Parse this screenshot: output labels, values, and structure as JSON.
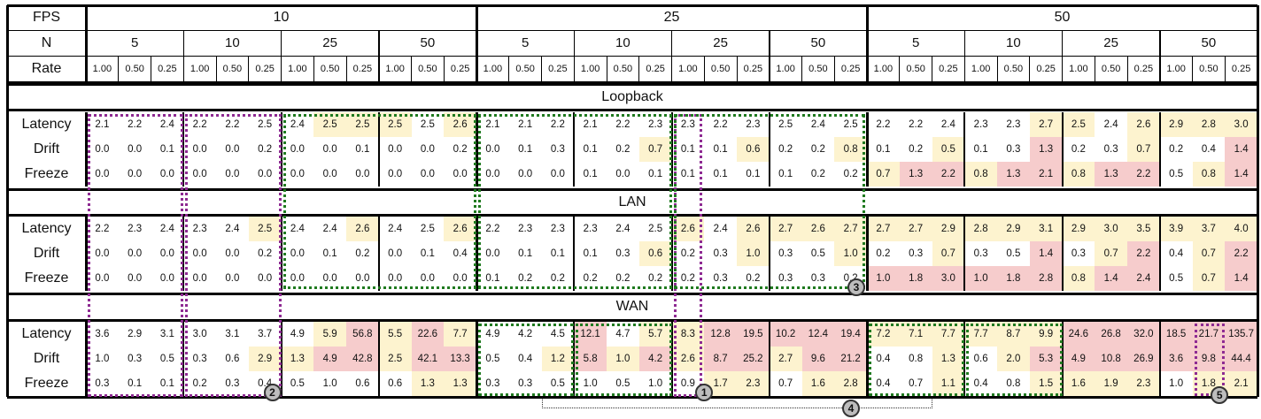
{
  "headers": {
    "fps_label": "FPS",
    "n_label": "N",
    "rate_label": "Rate",
    "fps_values": [
      "10",
      "25",
      "50"
    ],
    "n_values": [
      "5",
      "10",
      "25",
      "50"
    ],
    "rate_values": [
      "1.00",
      "0.50",
      "0.25"
    ]
  },
  "sections": [
    {
      "name": "Loopback",
      "rows": [
        {
          "label": "Latency",
          "values": [
            "2.1",
            "2.2",
            "2.4",
            "2.2",
            "2.2",
            "2.5",
            "2.4",
            "2.5",
            "2.5",
            "2.5",
            "2.5",
            "2.6",
            "2.1",
            "2.1",
            "2.2",
            "2.1",
            "2.2",
            "2.3",
            "2.3",
            "2.2",
            "2.3",
            "2.5",
            "2.4",
            "2.5",
            "2.2",
            "2.2",
            "2.4",
            "2.3",
            "2.3",
            "2.7",
            "2.5",
            "2.4",
            "2.6",
            "2.9",
            "2.8",
            "3.0"
          ],
          "levels": [
            "n",
            "n",
            "n",
            "n",
            "n",
            "n",
            "n",
            "y",
            "y",
            "y",
            "n",
            "y",
            "n",
            "n",
            "n",
            "n",
            "n",
            "n",
            "n",
            "n",
            "n",
            "n",
            "n",
            "n",
            "n",
            "n",
            "n",
            "n",
            "n",
            "y",
            "y",
            "n",
            "y",
            "y",
            "y",
            "y"
          ]
        },
        {
          "label": "Drift",
          "values": [
            "0.0",
            "0.0",
            "0.1",
            "0.0",
            "0.0",
            "0.2",
            "0.0",
            "0.0",
            "0.1",
            "0.0",
            "0.0",
            "0.2",
            "0.0",
            "0.1",
            "0.3",
            "0.1",
            "0.2",
            "0.7",
            "0.1",
            "0.1",
            "0.6",
            "0.2",
            "0.2",
            "0.8",
            "0.1",
            "0.2",
            "0.5",
            "0.1",
            "0.3",
            "1.3",
            "0.2",
            "0.3",
            "0.7",
            "0.2",
            "0.4",
            "1.4"
          ],
          "levels": [
            "n",
            "n",
            "n",
            "n",
            "n",
            "n",
            "n",
            "n",
            "n",
            "n",
            "n",
            "n",
            "n",
            "n",
            "n",
            "n",
            "n",
            "y",
            "n",
            "n",
            "y",
            "n",
            "n",
            "y",
            "n",
            "n",
            "y",
            "n",
            "n",
            "r",
            "n",
            "n",
            "y",
            "n",
            "n",
            "r"
          ]
        },
        {
          "label": "Freeze",
          "values": [
            "0.0",
            "0.0",
            "0.0",
            "0.0",
            "0.0",
            "0.0",
            "0.0",
            "0.0",
            "0.0",
            "0.0",
            "0.0",
            "0.0",
            "0.0",
            "0.0",
            "0.0",
            "0.1",
            "0.0",
            "0.1",
            "0.1",
            "0.1",
            "0.1",
            "0.1",
            "0.2",
            "0.2",
            "0.7",
            "1.3",
            "2.2",
            "0.8",
            "1.3",
            "2.1",
            "0.8",
            "1.3",
            "2.2",
            "0.5",
            "0.8",
            "1.4"
          ],
          "levels": [
            "n",
            "n",
            "n",
            "n",
            "n",
            "n",
            "n",
            "n",
            "n",
            "n",
            "n",
            "n",
            "n",
            "n",
            "n",
            "n",
            "n",
            "n",
            "n",
            "n",
            "n",
            "n",
            "n",
            "n",
            "y",
            "r",
            "r",
            "y",
            "r",
            "r",
            "y",
            "r",
            "r",
            "n",
            "y",
            "r"
          ]
        }
      ]
    },
    {
      "name": "LAN",
      "rows": [
        {
          "label": "Latency",
          "values": [
            "2.2",
            "2.3",
            "2.4",
            "2.3",
            "2.4",
            "2.5",
            "2.4",
            "2.4",
            "2.6",
            "2.4",
            "2.5",
            "2.6",
            "2.2",
            "2.3",
            "2.3",
            "2.3",
            "2.4",
            "2.5",
            "2.6",
            "2.4",
            "2.6",
            "2.7",
            "2.6",
            "2.7",
            "2.7",
            "2.7",
            "2.9",
            "2.8",
            "2.9",
            "3.1",
            "2.9",
            "3.0",
            "3.5",
            "3.9",
            "3.7",
            "4.0"
          ],
          "levels": [
            "n",
            "n",
            "n",
            "n",
            "n",
            "y",
            "n",
            "n",
            "y",
            "n",
            "n",
            "y",
            "n",
            "n",
            "n",
            "n",
            "n",
            "n",
            "y",
            "n",
            "y",
            "y",
            "y",
            "y",
            "y",
            "y",
            "y",
            "y",
            "y",
            "y",
            "y",
            "y",
            "y",
            "y",
            "y",
            "y"
          ]
        },
        {
          "label": "Drift",
          "values": [
            "0.0",
            "0.0",
            "0.0",
            "0.0",
            "0.0",
            "0.2",
            "0.0",
            "0.1",
            "0.2",
            "0.0",
            "0.1",
            "0.4",
            "0.0",
            "0.1",
            "0.1",
            "0.1",
            "0.3",
            "0.6",
            "0.2",
            "0.3",
            "1.0",
            "0.3",
            "0.5",
            "1.0",
            "0.2",
            "0.3",
            "0.7",
            "0.3",
            "0.5",
            "1.4",
            "0.3",
            "0.7",
            "2.2",
            "0.4",
            "0.7",
            "2.2"
          ],
          "levels": [
            "n",
            "n",
            "n",
            "n",
            "n",
            "n",
            "n",
            "n",
            "n",
            "n",
            "n",
            "n",
            "n",
            "n",
            "n",
            "n",
            "n",
            "y",
            "n",
            "n",
            "y",
            "n",
            "n",
            "y",
            "n",
            "n",
            "y",
            "n",
            "n",
            "r",
            "n",
            "y",
            "r",
            "n",
            "y",
            "r"
          ]
        },
        {
          "label": "Freeze",
          "values": [
            "0.0",
            "0.0",
            "0.0",
            "0.0",
            "0.0",
            "0.0",
            "0.0",
            "0.0",
            "0.0",
            "0.0",
            "0.0",
            "0.0",
            "0.1",
            "0.2",
            "0.2",
            "0.2",
            "0.2",
            "0.2",
            "0.2",
            "0.3",
            "0.2",
            "0.3",
            "0.3",
            "0.2",
            "1.0",
            "1.8",
            "3.0",
            "1.0",
            "1.8",
            "2.8",
            "0.8",
            "1.4",
            "2.4",
            "0.5",
            "0.7",
            "1.4"
          ],
          "levels": [
            "n",
            "n",
            "n",
            "n",
            "n",
            "n",
            "n",
            "n",
            "n",
            "n",
            "n",
            "n",
            "n",
            "n",
            "n",
            "n",
            "n",
            "n",
            "n",
            "n",
            "n",
            "n",
            "n",
            "n",
            "r",
            "r",
            "r",
            "r",
            "r",
            "r",
            "y",
            "r",
            "r",
            "n",
            "y",
            "r"
          ]
        }
      ]
    },
    {
      "name": "WAN",
      "rows": [
        {
          "label": "Latency",
          "values": [
            "3.6",
            "2.9",
            "3.1",
            "3.0",
            "3.1",
            "3.7",
            "4.9",
            "5.9",
            "56.8",
            "5.5",
            "22.6",
            "7.7",
            "4.9",
            "4.2",
            "4.5",
            "12.1",
            "4.7",
            "5.7",
            "8.3",
            "12.8",
            "19.5",
            "10.2",
            "12.4",
            "19.4",
            "7.2",
            "7.1",
            "7.7",
            "7.7",
            "8.7",
            "9.9",
            "24.6",
            "26.8",
            "32.0",
            "18.5",
            "21.7",
            "135.7"
          ],
          "levels": [
            "n",
            "n",
            "n",
            "n",
            "n",
            "n",
            "n",
            "y",
            "r",
            "y",
            "r",
            "y",
            "n",
            "n",
            "n",
            "r",
            "n",
            "y",
            "y",
            "r",
            "r",
            "r",
            "r",
            "r",
            "y",
            "y",
            "y",
            "y",
            "y",
            "y",
            "r",
            "r",
            "r",
            "r",
            "r",
            "r"
          ]
        },
        {
          "label": "Drift",
          "values": [
            "1.0",
            "0.3",
            "0.5",
            "0.3",
            "0.6",
            "2.9",
            "1.3",
            "4.9",
            "42.8",
            "2.5",
            "42.1",
            "13.3",
            "0.5",
            "0.4",
            "1.2",
            "5.8",
            "1.0",
            "4.2",
            "2.6",
            "8.7",
            "25.2",
            "2.7",
            "9.6",
            "21.2",
            "0.4",
            "0.8",
            "1.3",
            "0.6",
            "2.0",
            "5.3",
            "4.9",
            "10.8",
            "26.9",
            "3.6",
            "9.8",
            "44.4"
          ],
          "levels": [
            "n",
            "n",
            "n",
            "n",
            "n",
            "y",
            "y",
            "r",
            "r",
            "y",
            "r",
            "r",
            "n",
            "n",
            "y",
            "r",
            "y",
            "r",
            "y",
            "r",
            "r",
            "y",
            "r",
            "r",
            "n",
            "n",
            "y",
            "n",
            "y",
            "r",
            "r",
            "r",
            "r",
            "r",
            "r",
            "r"
          ]
        },
        {
          "label": "Freeze",
          "values": [
            "0.3",
            "0.1",
            "0.1",
            "0.2",
            "0.3",
            "0.4",
            "0.5",
            "1.0",
            "0.6",
            "0.6",
            "1.3",
            "1.3",
            "0.3",
            "0.3",
            "0.5",
            "1.0",
            "0.5",
            "1.0",
            "0.9",
            "1.7",
            "2.3",
            "0.7",
            "1.6",
            "2.8",
            "0.4",
            "0.7",
            "1.1",
            "0.4",
            "0.8",
            "1.5",
            "1.6",
            "1.9",
            "2.3",
            "1.0",
            "1.8",
            "2.1"
          ],
          "levels": [
            "n",
            "n",
            "n",
            "n",
            "n",
            "n",
            "n",
            "n",
            "n",
            "n",
            "y",
            "y",
            "n",
            "n",
            "n",
            "n",
            "n",
            "n",
            "n",
            "y",
            "y",
            "n",
            "y",
            "y",
            "n",
            "n",
            "y",
            "n",
            "n",
            "y",
            "y",
            "y",
            "y",
            "n",
            "y",
            "y"
          ]
        }
      ]
    }
  ],
  "callouts": [
    "1",
    "2",
    "3",
    "4",
    "5"
  ],
  "colors": {
    "yellow": "#fdf3cf",
    "red": "#f6cccc",
    "purple": "#8e2a92",
    "green": "#1f7a1f"
  }
}
